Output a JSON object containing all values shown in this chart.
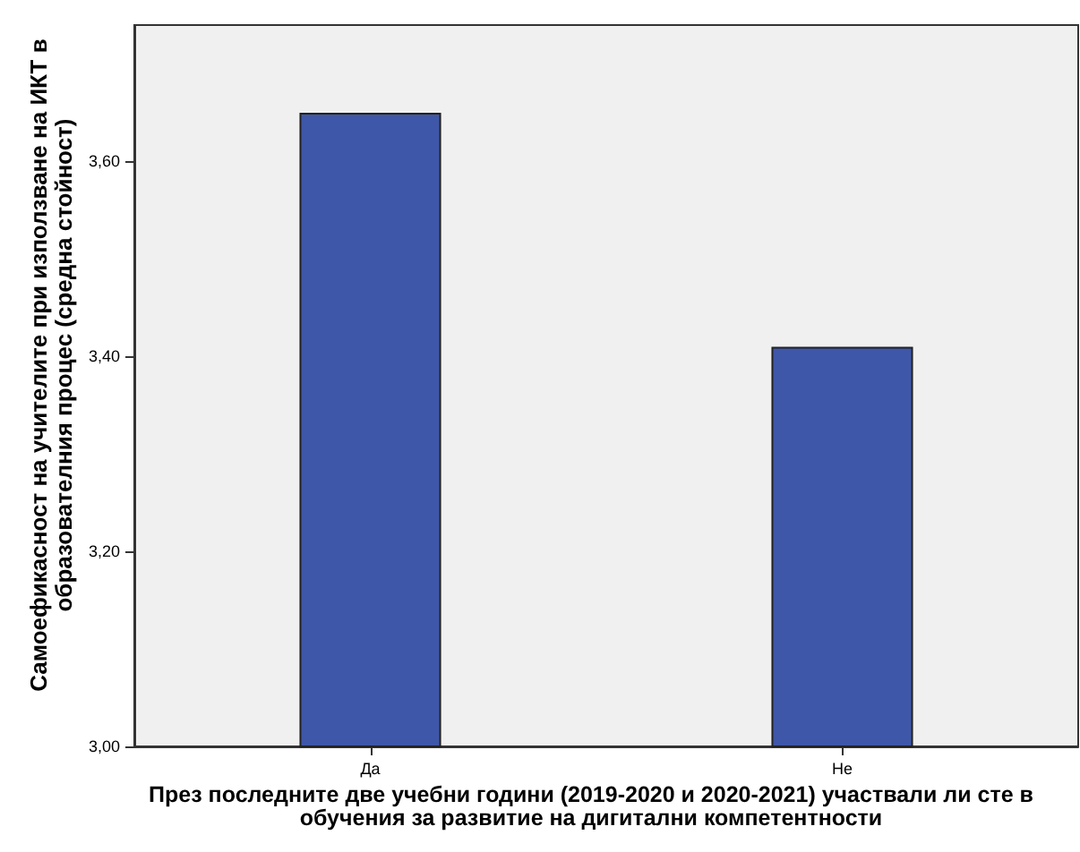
{
  "chart_data": {
    "type": "bar",
    "xlabel": "През последните две учебни години (2019-2020 и 2020-2021) участвали ли сте в обучения за развитие на дигитални компетентности",
    "ylabel": "Самоефикасност на учителите при използване на ИКТ в образователния процес (средна стойност)",
    "categories": [
      "Да",
      "Не"
    ],
    "values": [
      3.65,
      3.41
    ],
    "color": "#3f57a8",
    "ylim": [
      3.0,
      3.74
    ],
    "yticks": [
      {
        "value": 3.0,
        "label": "3,00"
      },
      {
        "value": 3.2,
        "label": "3,20"
      },
      {
        "value": 3.4,
        "label": "3,40"
      },
      {
        "value": 3.6,
        "label": "3,60"
      }
    ],
    "grid": false
  }
}
